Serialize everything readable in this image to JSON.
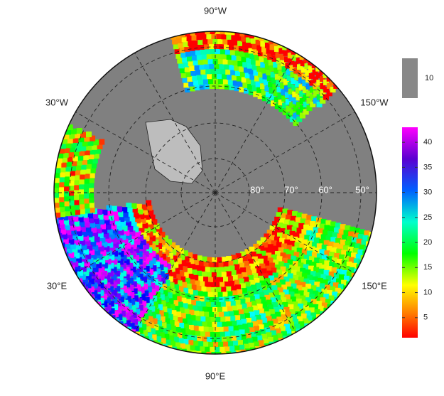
{
  "map": {
    "longitude_labels": [
      "90°W",
      "30°W",
      "150°W",
      "30°E",
      "150°E",
      "90°E"
    ],
    "latitude_labels": [
      "80°",
      "70°",
      "60°",
      "50°"
    ],
    "mask_legend": {
      "label": "10"
    },
    "colorbar": {
      "range": [
        1,
        43
      ],
      "ticks": [
        5,
        10,
        15,
        20,
        25,
        30,
        35,
        40
      ]
    }
  }
}
